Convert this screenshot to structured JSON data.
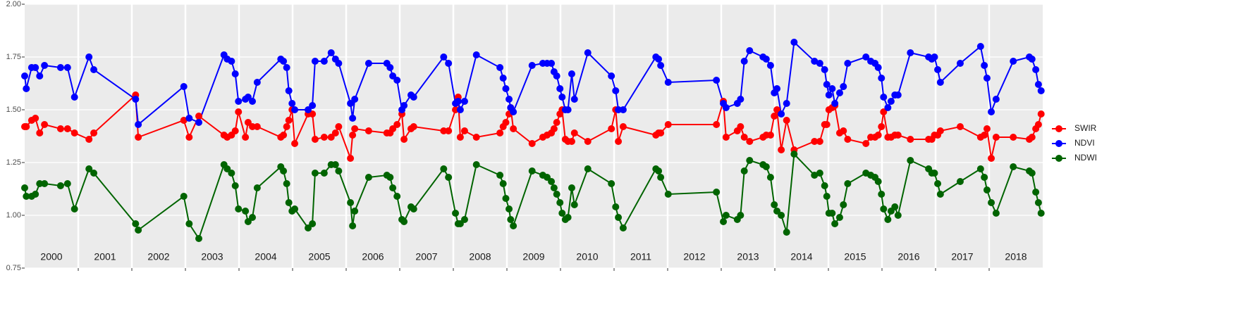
{
  "chart_data": {
    "type": "line",
    "panels": [
      2000,
      2001,
      2002,
      2003,
      2004,
      2005,
      2006,
      2007,
      2008,
      2009,
      2010,
      2011,
      2012,
      2013,
      2014,
      2015,
      2016,
      2017,
      2018
    ],
    "xlim": [
      2000,
      2019
    ],
    "ylim": [
      0.75,
      2.0
    ],
    "yticks": [
      {
        "value": 0.75,
        "label": "0.75"
      },
      {
        "value": 1.0,
        "label": "1.00"
      },
      {
        "value": 1.25,
        "label": "1.25"
      },
      {
        "value": 1.5,
        "label": "1.50"
      },
      {
        "value": 1.75,
        "label": "1.75"
      },
      {
        "value": 2.0,
        "label": "2.00"
      }
    ],
    "grid": true,
    "legend": "right",
    "x": [
      2000.0,
      2000.03,
      2000.13,
      2000.2,
      2000.28,
      2000.37,
      2000.67,
      2000.8,
      2000.93,
      2001.2,
      2001.29,
      2002.07,
      2002.12,
      2002.97,
      2003.07,
      2003.25,
      2003.72,
      2003.78,
      2003.86,
      2003.93,
      2003.99,
      2004.12,
      2004.17,
      2004.25,
      2004.34,
      2004.78,
      2004.83,
      2004.89,
      2004.93,
      2004.99,
      2005.04,
      2005.29,
      2005.37,
      2005.42,
      2005.59,
      2005.72,
      2005.8,
      2005.86,
      2006.08,
      2006.12,
      2006.16,
      2006.42,
      2006.76,
      2006.82,
      2006.87,
      2006.95,
      2007.04,
      2007.08,
      2007.21,
      2007.26,
      2007.82,
      2007.91,
      2008.04,
      2008.09,
      2008.13,
      2008.21,
      2008.43,
      2008.87,
      2008.93,
      2008.98,
      2009.04,
      2009.07,
      2009.12,
      2009.47,
      2009.67,
      2009.75,
      2009.83,
      2009.88,
      2009.93,
      2009.99,
      2010.03,
      2010.09,
      2010.14,
      2010.21,
      2010.26,
      2010.51,
      2010.95,
      2011.03,
      2011.08,
      2011.17,
      2011.78,
      2011.83,
      2011.87,
      2012.01,
      2012.91,
      2013.04,
      2013.09,
      2013.3,
      2013.36,
      2013.43,
      2013.53,
      2013.78,
      2013.84,
      2013.92,
      2013.99,
      2014.04,
      2014.12,
      2014.22,
      2014.36,
      2014.74,
      2014.84,
      2014.93,
      2014.97,
      2015.01,
      2015.07,
      2015.12,
      2015.21,
      2015.28,
      2015.36,
      2015.7,
      2015.79,
      2015.87,
      2015.93,
      2015.99,
      2016.03,
      2016.11,
      2016.17,
      2016.24,
      2016.3,
      2016.53,
      2016.87,
      2016.93,
      2016.98,
      2017.04,
      2017.09,
      2017.46,
      2017.84,
      2017.91,
      2017.96,
      2018.04,
      2018.13,
      2018.45,
      2018.75,
      2018.8,
      2018.87,
      2018.92,
      2018.97
    ],
    "series": [
      {
        "name": "SWIR",
        "color": "#ff0000",
        "values": [
          1.42,
          1.42,
          1.45,
          1.46,
          1.39,
          1.43,
          1.41,
          1.41,
          1.39,
          1.36,
          1.39,
          1.57,
          1.37,
          1.45,
          1.37,
          1.47,
          1.38,
          1.37,
          1.38,
          1.4,
          1.49,
          1.37,
          1.44,
          1.42,
          1.42,
          1.37,
          1.38,
          1.42,
          1.45,
          1.5,
          1.34,
          1.48,
          1.48,
          1.36,
          1.37,
          1.37,
          1.39,
          1.42,
          1.27,
          1.38,
          1.41,
          1.4,
          1.39,
          1.39,
          1.41,
          1.43,
          1.48,
          1.36,
          1.41,
          1.42,
          1.4,
          1.4,
          1.5,
          1.56,
          1.37,
          1.4,
          1.37,
          1.39,
          1.42,
          1.44,
          1.48,
          1.51,
          1.41,
          1.34,
          1.37,
          1.38,
          1.39,
          1.41,
          1.44,
          1.48,
          1.5,
          1.36,
          1.35,
          1.35,
          1.39,
          1.35,
          1.41,
          1.5,
          1.35,
          1.42,
          1.38,
          1.39,
          1.39,
          1.43,
          1.43,
          1.54,
          1.37,
          1.4,
          1.42,
          1.37,
          1.35,
          1.37,
          1.38,
          1.38,
          1.47,
          1.5,
          1.31,
          1.45,
          1.31,
          1.35,
          1.35,
          1.43,
          1.43,
          1.5,
          1.51,
          1.52,
          1.39,
          1.4,
          1.36,
          1.34,
          1.37,
          1.37,
          1.38,
          1.42,
          1.49,
          1.37,
          1.37,
          1.38,
          1.38,
          1.36,
          1.36,
          1.36,
          1.38,
          1.38,
          1.4,
          1.42,
          1.37,
          1.38,
          1.41,
          1.27,
          1.37,
          1.37,
          1.36,
          1.37,
          1.41,
          1.43,
          1.48
        ]
      },
      {
        "name": "NDVI",
        "color": "#0000ff",
        "values": [
          1.66,
          1.6,
          1.7,
          1.7,
          1.66,
          1.71,
          1.7,
          1.7,
          1.56,
          1.75,
          1.69,
          1.55,
          1.43,
          1.61,
          1.46,
          1.44,
          1.76,
          1.74,
          1.73,
          1.67,
          1.54,
          1.55,
          1.56,
          1.54,
          1.63,
          1.74,
          1.73,
          1.7,
          1.59,
          1.53,
          1.5,
          1.5,
          1.52,
          1.73,
          1.73,
          1.77,
          1.74,
          1.72,
          1.53,
          1.46,
          1.55,
          1.72,
          1.72,
          1.7,
          1.66,
          1.64,
          1.5,
          1.52,
          1.57,
          1.56,
          1.75,
          1.72,
          1.53,
          1.54,
          1.5,
          1.54,
          1.76,
          1.7,
          1.65,
          1.6,
          1.55,
          1.51,
          1.49,
          1.71,
          1.72,
          1.72,
          1.72,
          1.68,
          1.66,
          1.6,
          1.56,
          1.5,
          1.5,
          1.67,
          1.55,
          1.77,
          1.66,
          1.59,
          1.5,
          1.5,
          1.75,
          1.74,
          1.71,
          1.63,
          1.64,
          1.53,
          1.51,
          1.53,
          1.55,
          1.73,
          1.78,
          1.75,
          1.74,
          1.71,
          1.58,
          1.6,
          1.48,
          1.53,
          1.82,
          1.73,
          1.72,
          1.69,
          1.62,
          1.57,
          1.6,
          1.53,
          1.58,
          1.61,
          1.72,
          1.75,
          1.73,
          1.72,
          1.7,
          1.65,
          1.56,
          1.51,
          1.54,
          1.57,
          1.57,
          1.77,
          1.75,
          1.74,
          1.75,
          1.69,
          1.63,
          1.72,
          1.8,
          1.71,
          1.65,
          1.49,
          1.55,
          1.73,
          1.75,
          1.74,
          1.69,
          1.62,
          1.59
        ]
      },
      {
        "name": "NDWI",
        "color": "#006400",
        "values": [
          1.13,
          1.09,
          1.09,
          1.1,
          1.15,
          1.15,
          1.14,
          1.15,
          1.03,
          1.22,
          1.2,
          0.96,
          0.93,
          1.09,
          0.96,
          0.89,
          1.24,
          1.22,
          1.2,
          1.14,
          1.03,
          1.02,
          0.97,
          0.99,
          1.13,
          1.23,
          1.21,
          1.15,
          1.06,
          1.02,
          1.03,
          0.94,
          0.96,
          1.2,
          1.2,
          1.24,
          1.24,
          1.21,
          1.06,
          0.95,
          1.02,
          1.18,
          1.19,
          1.18,
          1.13,
          1.09,
          0.98,
          0.97,
          1.04,
          1.03,
          1.22,
          1.18,
          1.01,
          0.96,
          0.96,
          0.98,
          1.24,
          1.19,
          1.15,
          1.08,
          1.03,
          0.98,
          0.95,
          1.21,
          1.19,
          1.18,
          1.16,
          1.13,
          1.1,
          1.06,
          1.01,
          0.98,
          0.99,
          1.13,
          1.05,
          1.22,
          1.15,
          1.04,
          0.99,
          0.94,
          1.22,
          1.21,
          1.18,
          1.1,
          1.11,
          0.97,
          1.0,
          0.98,
          1.0,
          1.21,
          1.26,
          1.24,
          1.23,
          1.18,
          1.05,
          1.02,
          1.0,
          0.92,
          1.29,
          1.19,
          1.2,
          1.14,
          1.09,
          1.01,
          1.01,
          0.96,
          0.99,
          1.05,
          1.15,
          1.2,
          1.19,
          1.18,
          1.16,
          1.1,
          1.03,
          0.98,
          1.02,
          1.04,
          1.0,
          1.26,
          1.22,
          1.2,
          1.2,
          1.15,
          1.1,
          1.16,
          1.22,
          1.18,
          1.12,
          1.06,
          1.01,
          1.23,
          1.21,
          1.2,
          1.11,
          1.06,
          1.01
        ]
      }
    ]
  }
}
